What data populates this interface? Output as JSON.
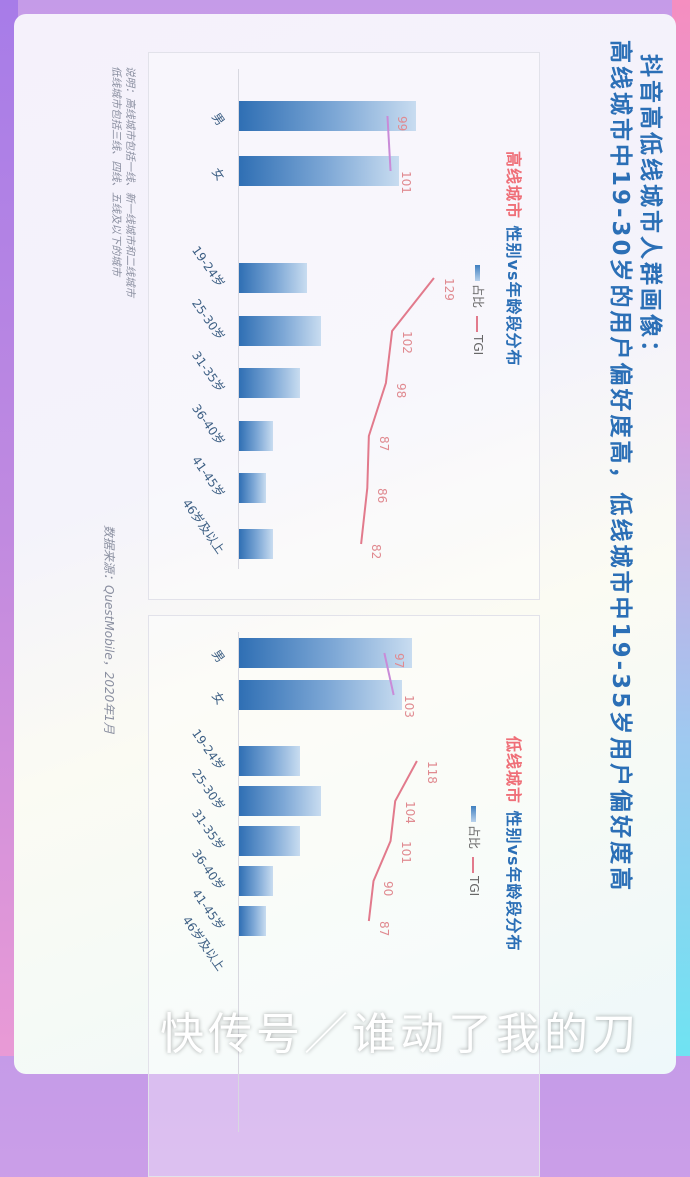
{
  "header": {
    "title_line1": "抖音高低线城市人群画像：",
    "title_line2": "高线城市中19-30岁的用户偏好度高，低线城市中19-35岁用户偏好度高"
  },
  "notes": {
    "line1": "说明：高线城市包括一线、新一线城市和二线城市",
    "line2": "低线城市包括三线、四线、五线及以下的城市",
    "source": "数据来源：QuestMobile，2020年1月"
  },
  "watermark": "快传号／谁动了我的刀",
  "colors": {
    "accent_blue": "#2b6fb6",
    "highlight_red": "#ef6f78",
    "tgi_line": "#e27a8c",
    "tgi_line_sex": "#c98bd8"
  },
  "chart_data": [
    {
      "type": "bar",
      "title_highlight": "高线城市",
      "title_rest": "性别vs年龄段分布",
      "legend": [
        "占比",
        "TGI"
      ],
      "sex_categories": [
        "男",
        "女"
      ],
      "sex_share_est": [
        52,
        47
      ],
      "sex_tgi": [
        99,
        101
      ],
      "age_categories": [
        "19-24岁",
        "25-30岁",
        "31-35岁",
        "36-40岁",
        "41-45岁",
        "46岁及以上"
      ],
      "age_share_est": [
        20,
        24,
        18,
        10,
        8,
        10
      ],
      "age_tgi": [
        129,
        102,
        98,
        87,
        86,
        82
      ]
    },
    {
      "type": "bar",
      "title_highlight": "低线城市",
      "title_rest": "性别vs年龄段分布",
      "legend": [
        "占比",
        "TGI"
      ],
      "sex_categories": [
        "男",
        "女"
      ],
      "sex_share_est": [
        51,
        48
      ],
      "sex_tgi": [
        97,
        103
      ],
      "age_categories": [
        "19-24岁",
        "25-30岁",
        "31-35岁",
        "36-40岁",
        "41-45岁",
        "46岁及以上"
      ],
      "age_share_est": [
        18,
        24,
        18,
        10,
        8,
        null
      ],
      "age_tgi": [
        118,
        104,
        101,
        90,
        87,
        null
      ]
    }
  ]
}
